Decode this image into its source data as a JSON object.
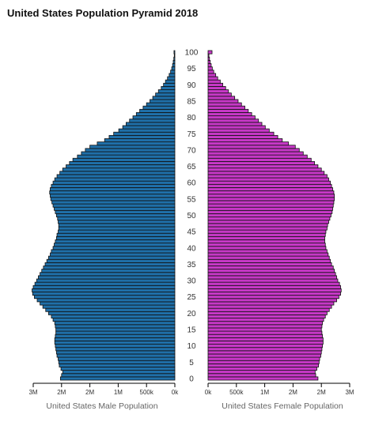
{
  "chart_data": {
    "type": "bar",
    "title": "United States Population Pyramid 2018",
    "left_label": "United States Male Population",
    "right_label": "United States Female Population",
    "age_ticks": [
      "0",
      "5",
      "10",
      "15",
      "20",
      "25",
      "30",
      "35",
      "40",
      "45",
      "50",
      "55",
      "60",
      "65",
      "70",
      "75",
      "80",
      "85",
      "90",
      "95",
      "100"
    ],
    "x_ticks": [
      "0k",
      "500k",
      "1M",
      "2M",
      "2M",
      "3M"
    ],
    "x_tick_values": [
      0,
      500000,
      1000000,
      1500000,
      2000000,
      2500000
    ],
    "xlim": [
      0,
      2500000
    ],
    "ages": [
      0,
      1,
      2,
      3,
      4,
      5,
      6,
      7,
      8,
      9,
      10,
      11,
      12,
      13,
      14,
      15,
      16,
      17,
      18,
      19,
      20,
      21,
      22,
      23,
      24,
      25,
      26,
      27,
      28,
      29,
      30,
      31,
      32,
      33,
      34,
      35,
      36,
      37,
      38,
      39,
      40,
      41,
      42,
      43,
      44,
      45,
      46,
      47,
      48,
      49,
      50,
      51,
      52,
      53,
      54,
      55,
      56,
      57,
      58,
      59,
      60,
      61,
      62,
      63,
      64,
      65,
      66,
      67,
      68,
      69,
      70,
      71,
      72,
      73,
      74,
      75,
      76,
      77,
      78,
      79,
      80,
      81,
      82,
      83,
      84,
      85,
      86,
      87,
      88,
      89,
      90,
      91,
      92,
      93,
      94,
      95,
      96,
      97,
      98,
      99,
      100
    ],
    "colors": {
      "male": "#1f6fa8",
      "female": "#c638c6",
      "stroke": "#111111"
    },
    "series": [
      {
        "name": "United States Male Population",
        "values": [
          2020000,
          2000000,
          1980000,
          2010000,
          2040000,
          2050000,
          2060000,
          2080000,
          2090000,
          2100000,
          2110000,
          2120000,
          2120000,
          2110000,
          2100000,
          2100000,
          2110000,
          2120000,
          2150000,
          2180000,
          2230000,
          2280000,
          2330000,
          2380000,
          2430000,
          2480000,
          2510000,
          2520000,
          2500000,
          2470000,
          2440000,
          2410000,
          2380000,
          2350000,
          2320000,
          2290000,
          2260000,
          2230000,
          2200000,
          2180000,
          2150000,
          2130000,
          2110000,
          2090000,
          2080000,
          2060000,
          2050000,
          2050000,
          2060000,
          2070000,
          2090000,
          2110000,
          2130000,
          2150000,
          2170000,
          2190000,
          2200000,
          2210000,
          2200000,
          2180000,
          2150000,
          2120000,
          2080000,
          2030000,
          1980000,
          1920000,
          1860000,
          1800000,
          1720000,
          1650000,
          1580000,
          1500000,
          1370000,
          1240000,
          1160000,
          1080000,
          990000,
          920000,
          860000,
          800000,
          740000,
          680000,
          620000,
          560000,
          500000,
          440000,
          390000,
          340000,
          290000,
          240000,
          200000,
          165000,
          130000,
          100000,
          75000,
          55000,
          40000,
          28000,
          18000,
          10000,
          15000
        ]
      },
      {
        "name": "United States Female Population",
        "values": [
          1940000,
          1900000,
          1890000,
          1920000,
          1950000,
          1960000,
          1970000,
          1990000,
          2000000,
          2010000,
          2020000,
          2030000,
          2030000,
          2020000,
          2010000,
          2000000,
          2010000,
          2020000,
          2040000,
          2070000,
          2100000,
          2140000,
          2180000,
          2220000,
          2270000,
          2310000,
          2340000,
          2350000,
          2340000,
          2320000,
          2290000,
          2270000,
          2250000,
          2230000,
          2210000,
          2180000,
          2160000,
          2140000,
          2120000,
          2100000,
          2080000,
          2070000,
          2060000,
          2060000,
          2070000,
          2080000,
          2100000,
          2110000,
          2130000,
          2150000,
          2170000,
          2190000,
          2200000,
          2210000,
          2220000,
          2230000,
          2230000,
          2220000,
          2200000,
          2180000,
          2160000,
          2130000,
          2100000,
          2050000,
          2000000,
          1940000,
          1880000,
          1820000,
          1750000,
          1680000,
          1610000,
          1540000,
          1420000,
          1310000,
          1230000,
          1160000,
          1080000,
          1010000,
          950000,
          890000,
          830000,
          770000,
          710000,
          650000,
          590000,
          530000,
          470000,
          410000,
          360000,
          310000,
          260000,
          215000,
          170000,
          135000,
          100000,
          75000,
          55000,
          38000,
          25000,
          15000,
          70000
        ]
      }
    ]
  }
}
